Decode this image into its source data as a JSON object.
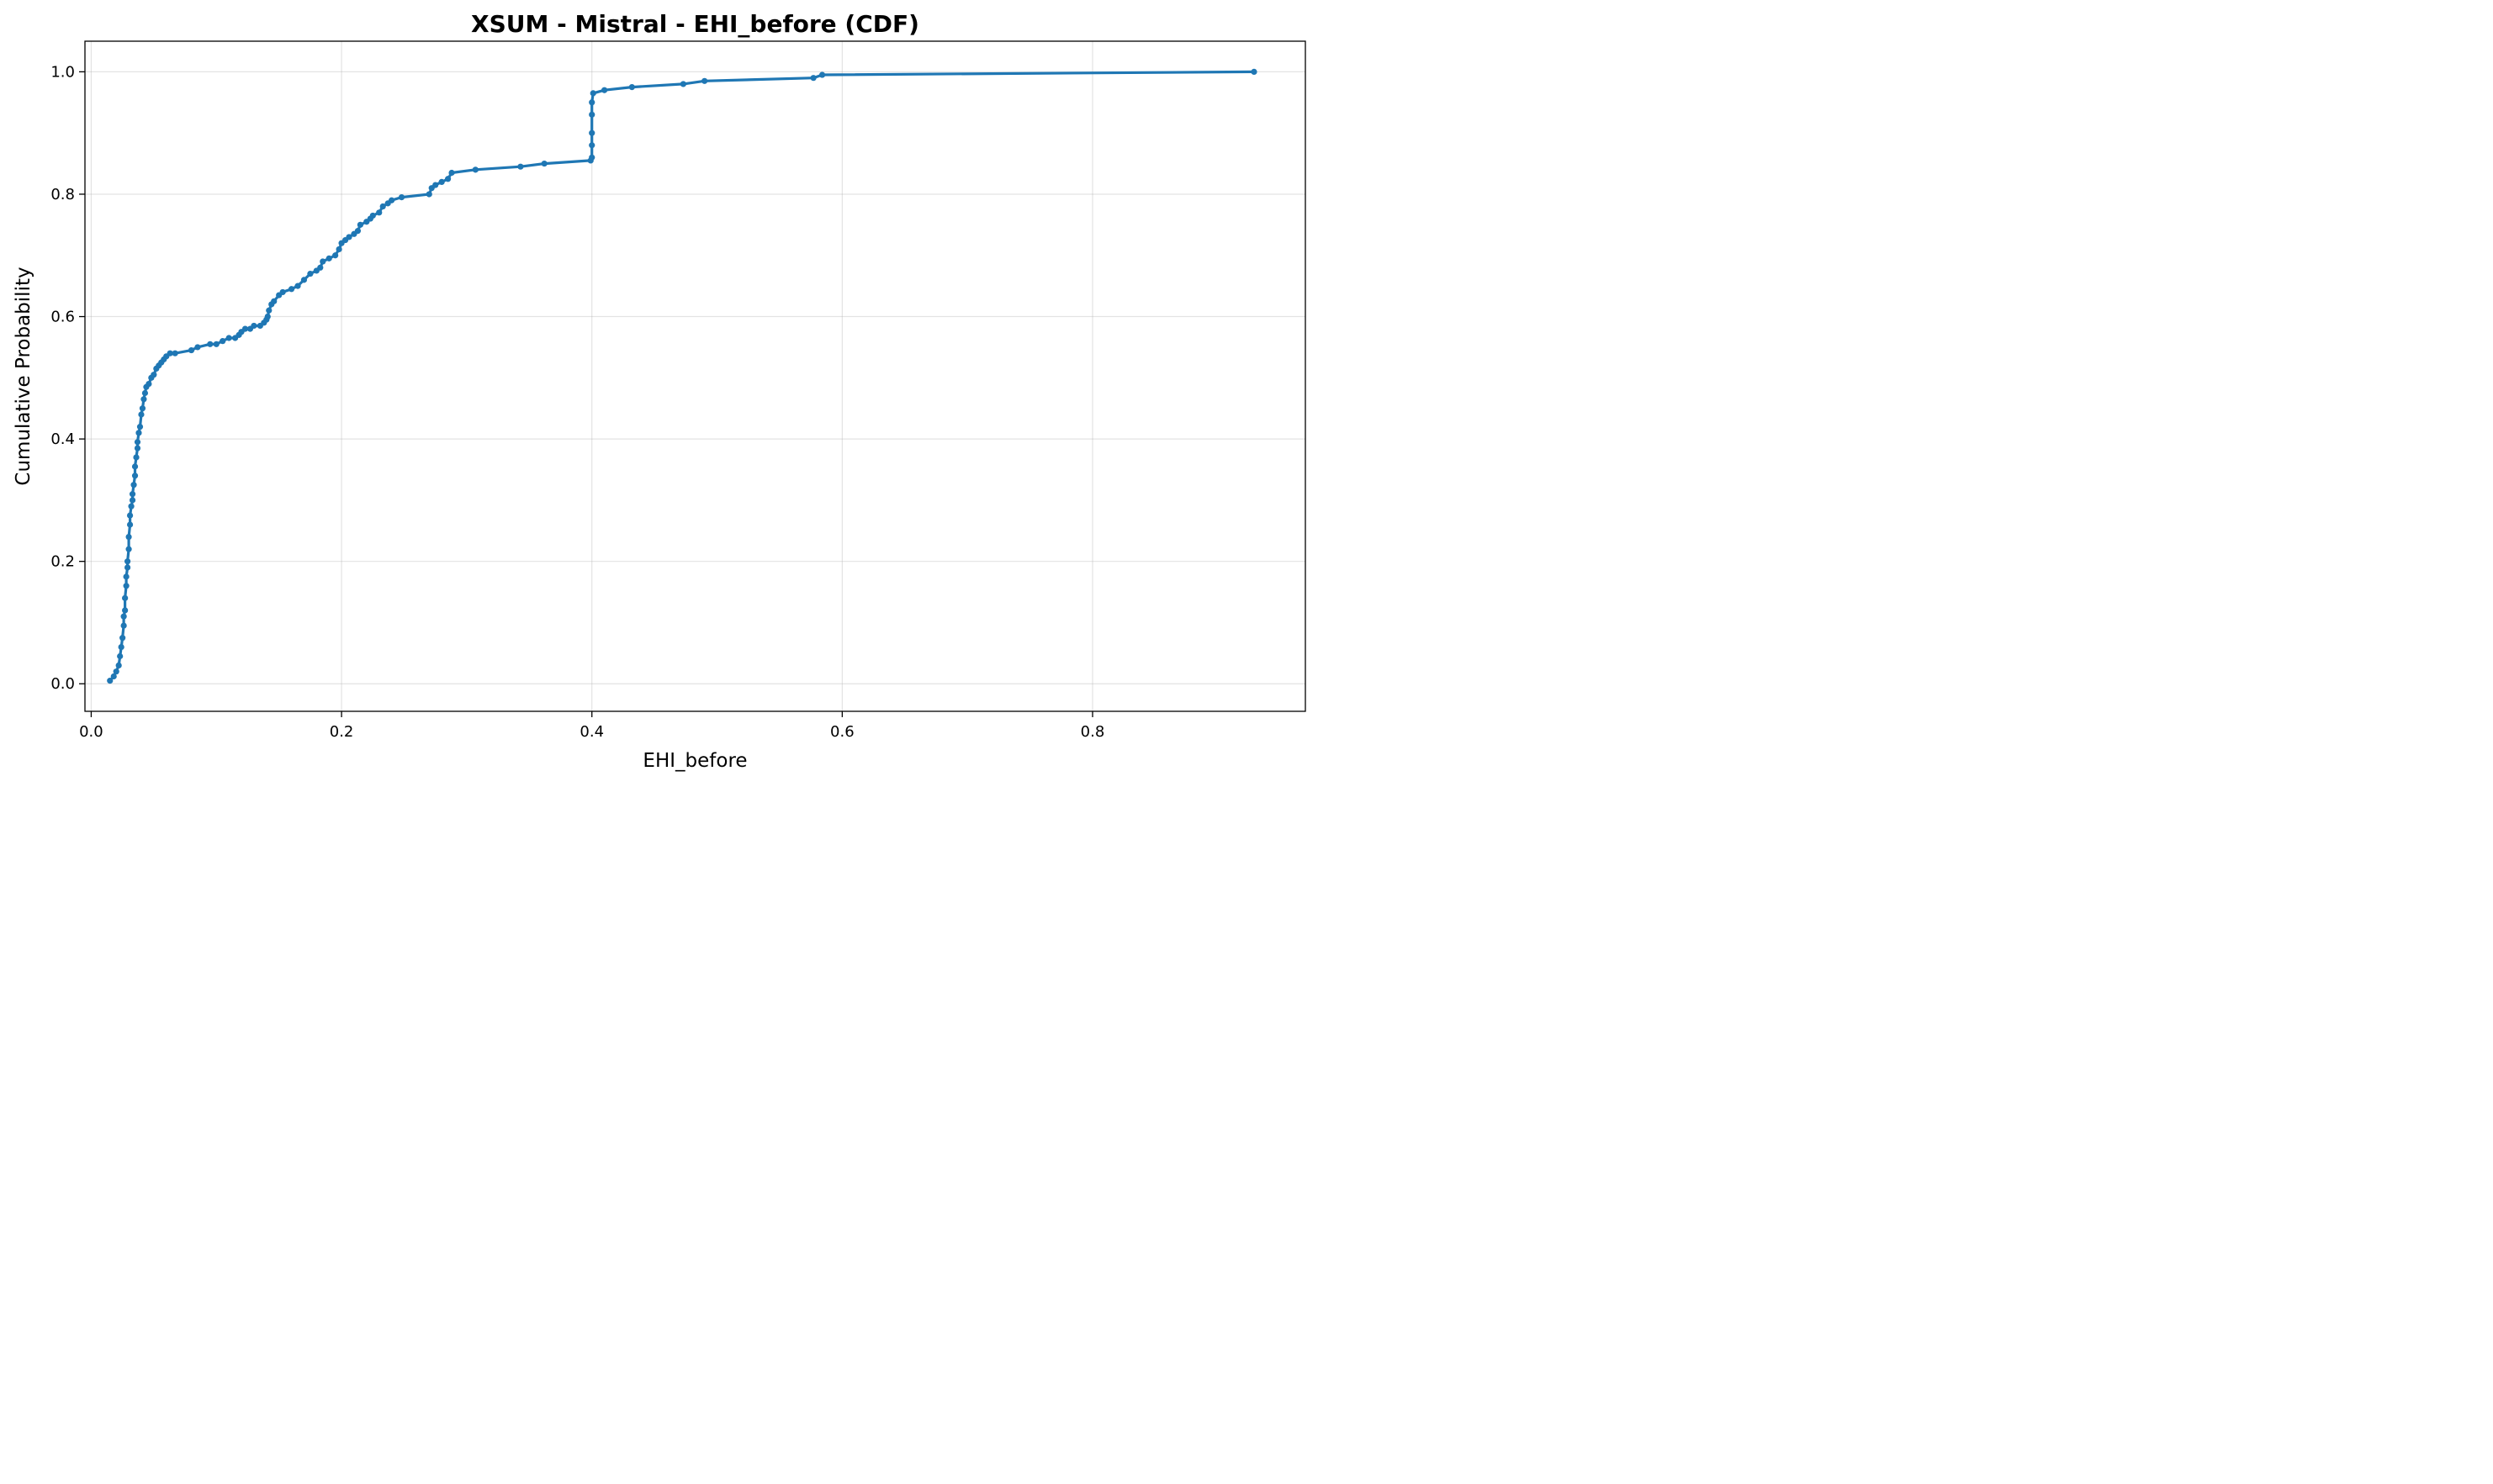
{
  "chart_data": {
    "type": "line",
    "title": "XSUM - Mistral - EHI_before (CDF)",
    "xlabel": "EHI_before",
    "ylabel": "Cumulative Probability",
    "xlim": [
      -0.005,
      0.97
    ],
    "ylim": [
      -0.045,
      1.05
    ],
    "xticks": [
      0.0,
      0.2,
      0.4,
      0.6,
      0.8
    ],
    "xtick_labels": [
      "0.0",
      "0.2",
      "0.4",
      "0.6",
      "0.8"
    ],
    "yticks": [
      0.0,
      0.2,
      0.4,
      0.6,
      0.8,
      1.0
    ],
    "ytick_labels": [
      "0.0",
      "0.2",
      "0.4",
      "0.6",
      "0.8",
      "1.0"
    ],
    "grid": true,
    "color": "#1f77b4",
    "series": [
      {
        "marker": "circle",
        "x": [
          0.015,
          0.018,
          0.02,
          0.022,
          0.023,
          0.024,
          0.025,
          0.026,
          0.026,
          0.027,
          0.027,
          0.028,
          0.028,
          0.029,
          0.029,
          0.03,
          0.03,
          0.031,
          0.031,
          0.032,
          0.033,
          0.033,
          0.034,
          0.035,
          0.035,
          0.036,
          0.037,
          0.037,
          0.038,
          0.039,
          0.04,
          0.041,
          0.042,
          0.043,
          0.044,
          0.046,
          0.048,
          0.05,
          0.052,
          0.054,
          0.056,
          0.058,
          0.06,
          0.063,
          0.067,
          0.08,
          0.085,
          0.095,
          0.1,
          0.105,
          0.11,
          0.115,
          0.118,
          0.12,
          0.123,
          0.127,
          0.13,
          0.135,
          0.138,
          0.14,
          0.141,
          0.142,
          0.144,
          0.146,
          0.15,
          0.153,
          0.16,
          0.165,
          0.17,
          0.175,
          0.18,
          0.183,
          0.185,
          0.19,
          0.195,
          0.198,
          0.2,
          0.203,
          0.206,
          0.21,
          0.213,
          0.215,
          0.22,
          0.223,
          0.225,
          0.23,
          0.233,
          0.237,
          0.24,
          0.248,
          0.27,
          0.272,
          0.275,
          0.28,
          0.285,
          0.288,
          0.307,
          0.343,
          0.362,
          0.399,
          0.4,
          0.4,
          0.4,
          0.4,
          0.4,
          0.401,
          0.41,
          0.432,
          0.473,
          0.49,
          0.577,
          0.584,
          0.929
        ],
        "y": [
          0.005,
          0.012,
          0.02,
          0.03,
          0.045,
          0.06,
          0.075,
          0.095,
          0.11,
          0.12,
          0.14,
          0.16,
          0.175,
          0.19,
          0.2,
          0.22,
          0.24,
          0.26,
          0.275,
          0.29,
          0.3,
          0.31,
          0.325,
          0.34,
          0.355,
          0.37,
          0.385,
          0.395,
          0.41,
          0.42,
          0.44,
          0.45,
          0.465,
          0.475,
          0.485,
          0.49,
          0.5,
          0.505,
          0.515,
          0.52,
          0.525,
          0.53,
          0.535,
          0.54,
          0.54,
          0.545,
          0.55,
          0.555,
          0.555,
          0.56,
          0.565,
          0.565,
          0.57,
          0.575,
          0.58,
          0.58,
          0.585,
          0.585,
          0.59,
          0.595,
          0.6,
          0.61,
          0.62,
          0.625,
          0.635,
          0.64,
          0.645,
          0.65,
          0.66,
          0.67,
          0.675,
          0.68,
          0.69,
          0.695,
          0.7,
          0.71,
          0.72,
          0.725,
          0.73,
          0.735,
          0.74,
          0.75,
          0.755,
          0.76,
          0.765,
          0.77,
          0.78,
          0.785,
          0.79,
          0.795,
          0.8,
          0.81,
          0.815,
          0.82,
          0.825,
          0.835,
          0.84,
          0.845,
          0.85,
          0.855,
          0.86,
          0.88,
          0.9,
          0.93,
          0.95,
          0.965,
          0.97,
          0.975,
          0.98,
          0.985,
          0.99,
          0.995,
          1.0
        ]
      }
    ]
  }
}
